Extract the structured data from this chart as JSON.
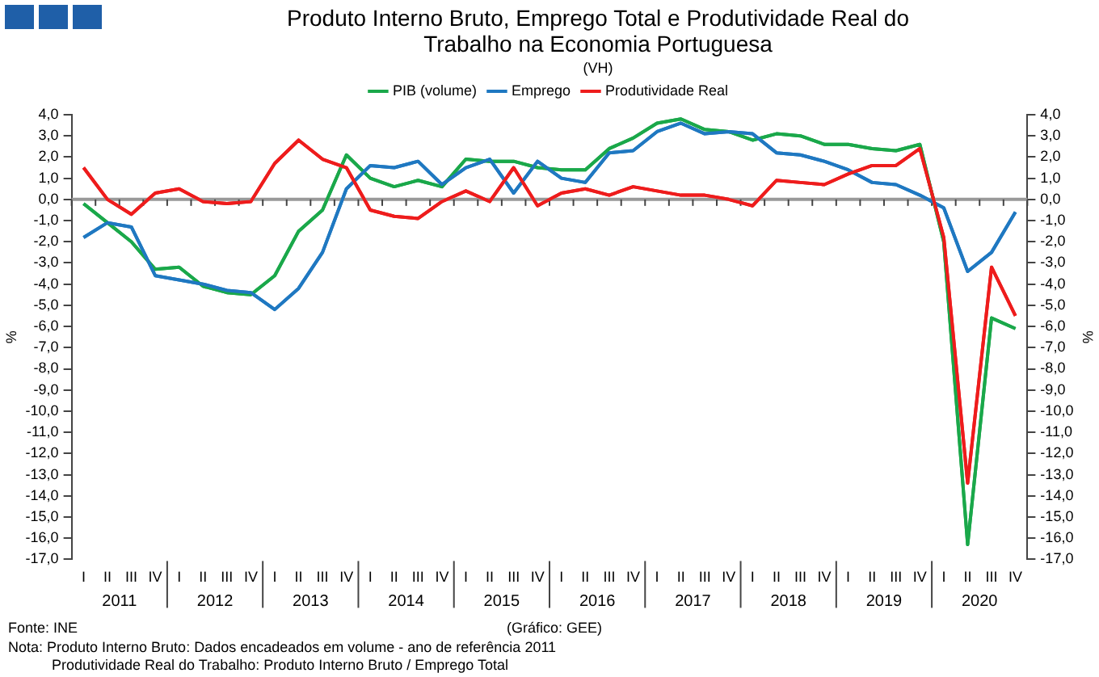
{
  "chart_data": {
    "type": "line",
    "title": "Produto Interno Bruto, Emprego Total e Produtividade Real do Trabalho na Economia Portuguesa",
    "subtitle": "(VH)",
    "ylabel": "%",
    "y2label": "%",
    "categories": [
      "I",
      "II",
      "III",
      "IV",
      "I",
      "II",
      "III",
      "IV",
      "I",
      "II",
      "III",
      "IV",
      "I",
      "II",
      "III",
      "IV",
      "I",
      "II",
      "III",
      "IV",
      "I",
      "II",
      "III",
      "IV",
      "I",
      "II",
      "III",
      "IV",
      "I",
      "II",
      "III",
      "IV",
      "I",
      "II",
      "III",
      "IV",
      "I",
      "II",
      "III",
      "IV"
    ],
    "series": [
      {
        "name": "PIB (volume)",
        "color": "#1aa84a",
        "values": [
          -0.2,
          -1.1,
          -2.0,
          -3.3,
          -3.2,
          -4.1,
          -4.4,
          -4.5,
          -3.6,
          -1.5,
          -0.5,
          2.1,
          1.0,
          0.6,
          0.9,
          0.6,
          1.9,
          1.8,
          1.8,
          1.5,
          1.4,
          1.4,
          2.4,
          2.9,
          3.6,
          3.8,
          3.3,
          3.2,
          2.8,
          3.1,
          3.0,
          2.6,
          2.6,
          2.4,
          2.3,
          2.6,
          -2.0,
          -16.3,
          -5.6,
          -6.1
        ]
      },
      {
        "name": "Emprego",
        "color": "#1f78c1",
        "values": [
          -1.8,
          -1.1,
          -1.3,
          -3.6,
          -3.8,
          -4.0,
          -4.3,
          -4.4,
          -5.2,
          -4.2,
          -2.5,
          0.5,
          1.6,
          1.5,
          1.8,
          0.7,
          1.5,
          1.9,
          0.3,
          1.8,
          1.0,
          0.8,
          2.2,
          2.3,
          3.2,
          3.6,
          3.1,
          3.2,
          3.1,
          2.2,
          2.1,
          1.8,
          1.4,
          0.8,
          0.7,
          0.2,
          -0.4,
          -3.4,
          -2.5,
          -0.6
        ]
      },
      {
        "name": "Produtividade Real",
        "color": "#ee1c1c",
        "values": [
          1.5,
          0.0,
          -0.7,
          0.3,
          0.5,
          -0.1,
          -0.2,
          -0.1,
          1.7,
          2.8,
          1.9,
          1.5,
          -0.5,
          -0.8,
          -0.9,
          -0.1,
          0.4,
          -0.1,
          1.5,
          -0.3,
          0.3,
          0.5,
          0.2,
          0.6,
          0.4,
          0.2,
          0.2,
          0.0,
          -0.3,
          0.9,
          0.8,
          0.7,
          1.2,
          1.6,
          1.6,
          2.4,
          -1.8,
          -13.4,
          -3.2,
          -5.5
        ]
      }
    ],
    "ylim": [
      -17,
      4
    ],
    "yticks": [
      {
        "value": 4,
        "label": "4,0"
      },
      {
        "value": 3,
        "label": "3,0"
      },
      {
        "value": 2,
        "label": "2,0"
      },
      {
        "value": 1,
        "label": "1,0"
      },
      {
        "value": 0,
        "label": "0,0"
      },
      {
        "value": -1,
        "label": "-1,0"
      },
      {
        "value": -2,
        "label": "-2,0"
      },
      {
        "value": -3,
        "label": "-3,0"
      },
      {
        "value": -4,
        "label": "-4,0"
      },
      {
        "value": -5,
        "label": "-5,0"
      },
      {
        "value": -6,
        "label": "-6,0"
      },
      {
        "value": -7,
        "label": "-7,0"
      },
      {
        "value": -8,
        "label": "-8,0"
      },
      {
        "value": -9,
        "label": "-9,0"
      },
      {
        "value": -10,
        "label": "-10,0"
      },
      {
        "value": -11,
        "label": "-11,0"
      },
      {
        "value": -12,
        "label": "-12,0"
      },
      {
        "value": -13,
        "label": "-13,0"
      },
      {
        "value": -14,
        "label": "-14,0"
      },
      {
        "value": -15,
        "label": "-15,0"
      },
      {
        "value": -16,
        "label": "-16,0"
      },
      {
        "value": -17,
        "label": "-17,0"
      }
    ],
    "y2lim": [
      -17,
      4
    ],
    "y2ticks": [
      {
        "value": 4,
        "label": "4,0"
      },
      {
        "value": 3,
        "label": "3,0"
      },
      {
        "value": 2,
        "label": "2,0"
      },
      {
        "value": 1,
        "label": "1,0"
      },
      {
        "value": 0,
        "label": "0,0"
      },
      {
        "value": -1,
        "label": "-1,0"
      },
      {
        "value": -2,
        "label": "-2,0"
      },
      {
        "value": -3,
        "label": "-3,0"
      },
      {
        "value": -4,
        "label": "-4,0"
      },
      {
        "value": -5,
        "label": "-5,0"
      },
      {
        "value": -6,
        "label": "-6,0"
      },
      {
        "value": -7,
        "label": "-7,0"
      },
      {
        "value": -8,
        "label": "-8,0"
      },
      {
        "value": -9,
        "label": "-9,0"
      },
      {
        "value": -10,
        "label": "-10,0"
      },
      {
        "value": -11,
        "label": "-11,0"
      },
      {
        "value": -12,
        "label": "-12,0"
      },
      {
        "value": -13,
        "label": "-13,0"
      },
      {
        "value": -14,
        "label": "-14,0"
      },
      {
        "value": -15,
        "label": "-15,0"
      },
      {
        "value": -16,
        "label": "-16,0"
      },
      {
        "value": -17,
        "label": "-17,0"
      }
    ],
    "ref_lines": [
      {
        "axis": "y",
        "value": 0,
        "color": "#999999"
      }
    ],
    "annotations": [
      "2011",
      "2012",
      "2013",
      "2014",
      "2015",
      "2016",
      "2017",
      "2018",
      "2019",
      "2020",
      "Fonte: INE",
      "(Gráfico: GEE)",
      "Nota: Produto Interno Bruto: Dados encadeados em volume - ano de referência 2011",
      "Produtividade Real do Trabalho: Produto Interno Bruto / Emprego Total"
    ],
    "legend": "top",
    "grid": false,
    "marker": "none",
    "line_style": "solid"
  }
}
